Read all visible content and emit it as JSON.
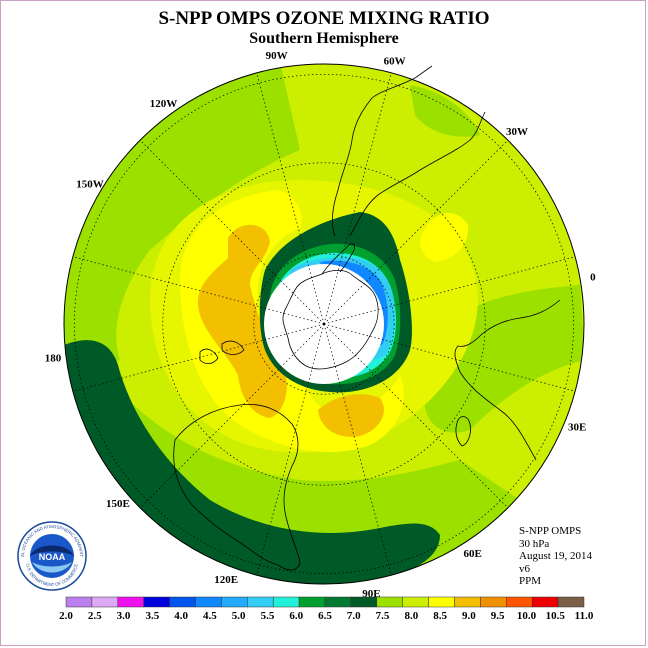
{
  "title": "S-NPP OMPS OZONE MIXING RATIO",
  "subtitle": "Southern Hemisphere",
  "info": [
    "S-NPP OMPS",
    "30 hPa",
    "August 19, 2014",
    "v6",
    "PPM"
  ],
  "logo": {
    "text": "NOAA",
    "ring_text": "NATIONAL OCEANIC AND ATMOSPHERIC ADMINISTRATION",
    "ring_text_bottom": "U.S. DEPARTMENT OF COMMERCE"
  },
  "chart_data": {
    "type": "heatmap",
    "projection": "south polar stereographic",
    "quantity": "ozone mixing ratio",
    "units": "PPM",
    "pressure_level": "30 hPa",
    "date": "August 19, 2014",
    "longitude_labels": [
      "90W",
      "60W",
      "30W",
      "0",
      "30E",
      "60E",
      "90E",
      "120E",
      "150E",
      "180",
      "150W",
      "120W"
    ],
    "colorbar": {
      "ticks": [
        "2.0",
        "2.5",
        "3.0",
        "3.5",
        "4.0",
        "4.5",
        "5.0",
        "5.5",
        "6.0",
        "6.5",
        "7.0",
        "7.5",
        "8.0",
        "8.5",
        "9.0",
        "9.5",
        "10.0",
        "10.5",
        "11.0"
      ],
      "colors": [
        "#bb80ee",
        "#dda8f5",
        "#ee11ee",
        "#0000dd",
        "#0055ee",
        "#1188ff",
        "#22aaff",
        "#33ccf5",
        "#22f0d8",
        "#00a030",
        "#007a30",
        "#005a28",
        "#9ce000",
        "#ccee00",
        "#ffff00",
        "#f2c000",
        "#f09000",
        "#ff5500",
        "#ee0000",
        "#7b5e46"
      ]
    },
    "field_summary": {
      "pole_region": "no data (polar night)",
      "vortex_edge_range": [
        3.5,
        7.0
      ],
      "midlatitude_range": [
        7.0,
        8.0
      ],
      "maximum_band": [
        8.5,
        9.0
      ]
    }
  }
}
